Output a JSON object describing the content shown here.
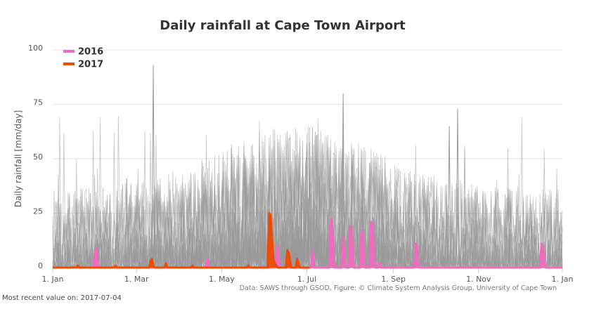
{
  "chart_data": {
    "type": "line",
    "title": "Daily rainfall at Cape Town Airport",
    "ylabel": "Daily rainfall [mm/day]",
    "xlabel": "",
    "ylim": [
      0,
      100
    ],
    "yticks": [
      0,
      25,
      50,
      75,
      100
    ],
    "xlim_doy": [
      1,
      366
    ],
    "xticks": [
      {
        "label": "1. Jan",
        "doy": 1
      },
      {
        "label": "1. Mar",
        "doy": 61
      },
      {
        "label": "1. May",
        "doy": 122
      },
      {
        "label": "1. Jul",
        "doy": 183
      },
      {
        "label": "1. Sep",
        "doy": 245
      },
      {
        "label": "1. Nov",
        "doy": 306
      },
      {
        "label": "1. Jan",
        "doy": 366
      }
    ],
    "grid": true,
    "legend_position": "top-left",
    "credits": "Data: SAWS through GSOD, Figure: © Climate System Analysis Group, University of Cape Town",
    "series": [
      {
        "name": "2016",
        "color": "#f06bbe",
        "points": [
          [
            1,
            0
          ],
          [
            30,
            0
          ],
          [
            31,
            6
          ],
          [
            32,
            9
          ],
          [
            33,
            4
          ],
          [
            34,
            0
          ],
          [
            110,
            0
          ],
          [
            111,
            2
          ],
          [
            112,
            4
          ],
          [
            113,
            0
          ],
          [
            160,
            0
          ],
          [
            161,
            6
          ],
          [
            162,
            10
          ],
          [
            163,
            4
          ],
          [
            164,
            0
          ],
          [
            186,
            0
          ],
          [
            187,
            8
          ],
          [
            188,
            0
          ],
          [
            199,
            0
          ],
          [
            200,
            22
          ],
          [
            201,
            22
          ],
          [
            202,
            5
          ],
          [
            203,
            0
          ],
          [
            208,
            0
          ],
          [
            209,
            14
          ],
          [
            210,
            5
          ],
          [
            211,
            0
          ],
          [
            213,
            0
          ],
          [
            214,
            19
          ],
          [
            215,
            18
          ],
          [
            216,
            5
          ],
          [
            217,
            0
          ],
          [
            221,
            0
          ],
          [
            222,
            17
          ],
          [
            223,
            15
          ],
          [
            224,
            3
          ],
          [
            225,
            0
          ],
          [
            228,
            0
          ],
          [
            229,
            21
          ],
          [
            230,
            20
          ],
          [
            231,
            6
          ],
          [
            232,
            0
          ],
          [
            234,
            0
          ],
          [
            235,
            2
          ],
          [
            236,
            0
          ],
          [
            260,
            0
          ],
          [
            261,
            11
          ],
          [
            262,
            9
          ],
          [
            263,
            0
          ],
          [
            350,
            0
          ],
          [
            351,
            11
          ],
          [
            352,
            10
          ],
          [
            353,
            3
          ],
          [
            354,
            0
          ],
          [
            366,
            0
          ]
        ]
      },
      {
        "name": "2017",
        "color": "#f04a00",
        "points": [
          [
            1,
            0
          ],
          [
            18,
            0
          ],
          [
            19,
            1
          ],
          [
            20,
            0
          ],
          [
            45,
            0
          ],
          [
            46,
            1
          ],
          [
            47,
            0
          ],
          [
            70,
            0
          ],
          [
            71,
            3
          ],
          [
            72,
            4
          ],
          [
            73,
            1
          ],
          [
            74,
            0
          ],
          [
            81,
            0
          ],
          [
            82,
            2
          ],
          [
            83,
            0
          ],
          [
            100,
            0
          ],
          [
            101,
            1
          ],
          [
            102,
            0
          ],
          [
            140,
            0
          ],
          [
            141,
            1
          ],
          [
            142,
            0
          ],
          [
            155,
            0
          ],
          [
            156,
            25
          ],
          [
            157,
            24
          ],
          [
            158,
            14
          ],
          [
            159,
            4
          ],
          [
            160,
            2
          ],
          [
            161,
            1
          ],
          [
            162,
            0
          ],
          [
            168,
            0
          ],
          [
            169,
            8
          ],
          [
            170,
            7
          ],
          [
            171,
            3
          ],
          [
            172,
            0
          ],
          [
            175,
            0
          ],
          [
            176,
            4
          ],
          [
            177,
            2
          ],
          [
            178,
            0
          ],
          [
            185,
            0
          ]
        ]
      }
    ],
    "background_series_color": "#999999",
    "background_series_count": 40
  },
  "footer": {
    "most_recent": "Most recent value on: 2017-07-04"
  }
}
